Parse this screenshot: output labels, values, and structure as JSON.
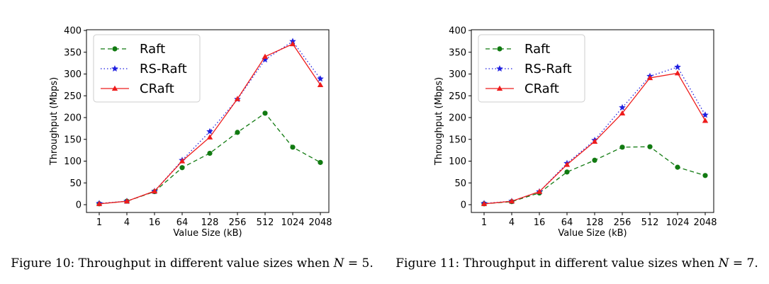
{
  "colors": {
    "raft": "#117a11",
    "rs_raft": "#1f1fe0",
    "craft": "#ee1c1c"
  },
  "figures": [
    {
      "caption_prefix": "Figure 10: Throughput in different value sizes when ",
      "caption_var": "N",
      "caption_suffix": " = 5."
    },
    {
      "caption_prefix": "Figure 11: Throughput in different value sizes when ",
      "caption_var": "N",
      "caption_suffix": " = 7."
    }
  ],
  "chart_data": [
    {
      "type": "line",
      "xlabel": "Value Size (kB)",
      "ylabel": "Throughput (Mbps)",
      "categories": [
        "1",
        "4",
        "16",
        "64",
        "128",
        "256",
        "512",
        "1024",
        "2048"
      ],
      "ylim": [
        0,
        400
      ],
      "yticks": [
        0,
        50,
        100,
        150,
        200,
        250,
        300,
        350,
        400
      ],
      "grid": false,
      "legend_position": "top-left",
      "series": [
        {
          "name": "Raft",
          "style": "dashed",
          "marker": "circle",
          "color": "#117a11",
          "values": [
            2,
            8,
            30,
            85,
            118,
            166,
            210,
            132,
            97
          ]
        },
        {
          "name": "RS-Raft",
          "style": "dotted",
          "marker": "star",
          "color": "#1f1fe0",
          "values": [
            3,
            8,
            31,
            102,
            168,
            242,
            333,
            375,
            289
          ]
        },
        {
          "name": "CRaft",
          "style": "solid",
          "marker": "triangle",
          "color": "#ee1c1c",
          "values": [
            2,
            8,
            31,
            100,
            155,
            243,
            340,
            369,
            275
          ]
        }
      ]
    },
    {
      "type": "line",
      "xlabel": "Value Size (kB)",
      "ylabel": "Throughput (Mbps)",
      "categories": [
        "1",
        "4",
        "16",
        "64",
        "128",
        "256",
        "512",
        "1024",
        "2048"
      ],
      "ylim": [
        0,
        400
      ],
      "yticks": [
        0,
        50,
        100,
        150,
        200,
        250,
        300,
        350,
        400
      ],
      "grid": false,
      "legend_position": "top-left",
      "series": [
        {
          "name": "Raft",
          "style": "dashed",
          "marker": "circle",
          "color": "#117a11",
          "values": [
            2,
            7,
            27,
            75,
            102,
            132,
            133,
            86,
            67
          ]
        },
        {
          "name": "RS-Raft",
          "style": "dotted",
          "marker": "star",
          "color": "#1f1fe0",
          "values": [
            3,
            8,
            30,
            95,
            148,
            223,
            295,
            316,
            206
          ]
        },
        {
          "name": "CRaft",
          "style": "solid",
          "marker": "triangle",
          "color": "#ee1c1c",
          "values": [
            2,
            8,
            30,
            92,
            145,
            210,
            291,
            302,
            193
          ]
        }
      ]
    }
  ]
}
